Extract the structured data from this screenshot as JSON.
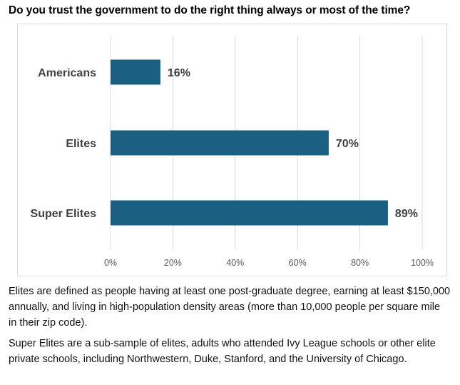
{
  "header": {
    "title": "Do you trust the government to do the right thing always or most of the time?"
  },
  "chart_data": {
    "type": "bar",
    "orientation": "horizontal",
    "title": "Do you trust the government to do the right thing always or most of the time?",
    "categories": [
      "Americans",
      "Elites",
      "Super Elites"
    ],
    "values": [
      16,
      70,
      89
    ],
    "value_labels": [
      "16%",
      "70%",
      "89%"
    ],
    "xlim": [
      0,
      100
    ],
    "x_ticks": [
      0,
      20,
      40,
      60,
      80,
      100
    ],
    "x_tick_labels": [
      "0%",
      "20%",
      "40%",
      "60%",
      "80%",
      "100%"
    ],
    "grid": "vertical",
    "bar_color": "#1a5f82",
    "legend": "none"
  },
  "notes": {
    "definition_elites": "Elites are defined as people having at least one post-graduate degree, earning at least $150,000 annually, and living in high-population density areas (more than 10,000 people per square mile in their zip code).",
    "definition_super_elites": "Super Elites are a sub-sample of elites, adults who attended Ivy League schools or other elite private schools, including Northwestern, Duke, Stanford, and the University of Chicago."
  }
}
